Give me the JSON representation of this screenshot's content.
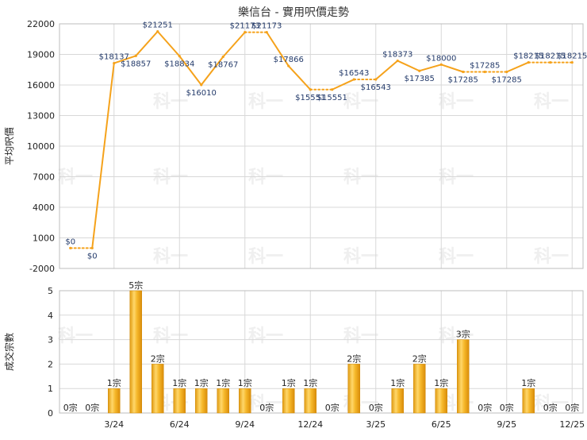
{
  "chart_data": [
    {
      "type": "line",
      "title": "樂信台 - 實用呎價走勢",
      "ylabel": "平均呎價",
      "ylim": [
        -2000,
        22000
      ],
      "yticks": [
        -2000,
        1000,
        4000,
        7000,
        10000,
        13000,
        16000,
        19000,
        22000
      ],
      "grid": true,
      "line_color": "#f5a21b",
      "x": [
        "1/24",
        "2/24",
        "3/24",
        "4/24",
        "5/24",
        "6/24",
        "7/24",
        "8/24",
        "9/24",
        "10/24",
        "11/24",
        "12/24",
        "1/25",
        "2/25",
        "3/25",
        "4/25",
        "5/25",
        "6/25",
        "7/25",
        "8/25",
        "9/25",
        "10/25",
        "11/25",
        "12/25"
      ],
      "values": [
        0,
        0,
        18137,
        18857,
        21251,
        18834,
        16010,
        18767,
        21173,
        21173,
        17866,
        15551,
        15551,
        16543,
        16543,
        18373,
        17385,
        18000,
        17285,
        17285,
        17285,
        18215,
        18215,
        18215
      ],
      "data_labels": [
        "$0",
        "$0",
        "$18137",
        "$18857",
        "$21251",
        "$18834",
        "$16010",
        "$18767",
        "$21173",
        "$21173",
        "$17866",
        "$15551",
        "$15551",
        "$16543",
        "$16543",
        "$18373",
        "$17385",
        "$18000",
        "$17285",
        "$17285",
        "$17285",
        "$18215",
        "$18215",
        "$18215"
      ],
      "dotted_segments": [
        0,
        8,
        11,
        13,
        18,
        19,
        21,
        22
      ]
    },
    {
      "type": "bar",
      "ylabel": "成交宗數",
      "ylim": [
        0,
        5
      ],
      "yticks": [
        0,
        1,
        2,
        3,
        4,
        5
      ],
      "grid": true,
      "bar_color": "#f2b51c",
      "categories": [
        "1/24",
        "2/24",
        "3/24",
        "4/24",
        "5/24",
        "6/24",
        "7/24",
        "8/24",
        "9/24",
        "10/24",
        "11/24",
        "12/24",
        "1/25",
        "2/25",
        "3/25",
        "4/25",
        "5/25",
        "6/25",
        "7/25",
        "8/25",
        "9/25",
        "10/25",
        "11/25",
        "12/25"
      ],
      "values": [
        0,
        0,
        1,
        5,
        2,
        1,
        1,
        1,
        1,
        0,
        1,
        1,
        0,
        2,
        0,
        1,
        2,
        1,
        3,
        0,
        0,
        1,
        0,
        0
      ],
      "data_labels": [
        "0宗",
        "0宗",
        "1宗",
        "5宗",
        "2宗",
        "1宗",
        "1宗",
        "1宗",
        "1宗",
        "0宗",
        "1宗",
        "1宗",
        "0宗",
        "2宗",
        "0宗",
        "1宗",
        "2宗",
        "1宗",
        "3宗",
        "0宗",
        "0宗",
        "1宗",
        "0宗",
        "0宗"
      ],
      "xtick_labels": [
        {
          "index": 2,
          "label": "3/24"
        },
        {
          "index": 5,
          "label": "6/24"
        },
        {
          "index": 8,
          "label": "9/24"
        },
        {
          "index": 11,
          "label": "12/24"
        },
        {
          "index": 14,
          "label": "3/25"
        },
        {
          "index": 17,
          "label": "6/25"
        },
        {
          "index": 20,
          "label": "9/25"
        },
        {
          "index": 23,
          "label": "12/25"
        }
      ]
    }
  ],
  "watermark": "科一"
}
